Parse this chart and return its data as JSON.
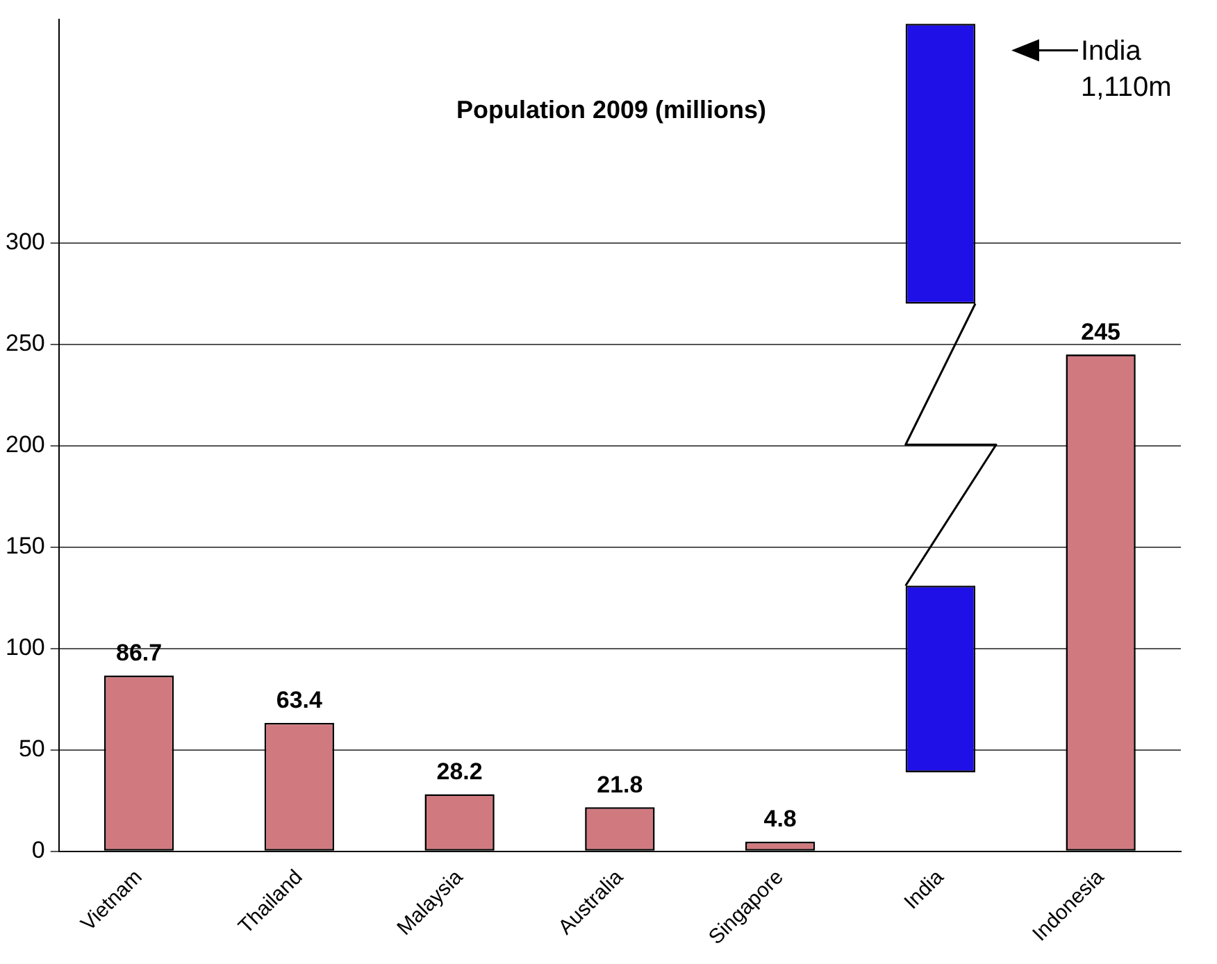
{
  "chart_data": {
    "type": "bar",
    "title": "Population 2009 (millions)",
    "categories": [
      "Vietnam",
      "Thailand",
      "Malaysia",
      "Australia",
      "Singapore",
      "India",
      "Indonesia"
    ],
    "series": [
      {
        "color": "#d07a80",
        "values": [
          86.7,
          63.4,
          28.2,
          21.8,
          4.8,
          null,
          245
        ],
        "value_labels": [
          "86.7",
          "63.4",
          "28.2",
          "21.8",
          "4.8",
          null,
          "245"
        ]
      },
      {
        "color": "#2010e8",
        "values": [
          null,
          null,
          null,
          null,
          null,
          92,
          null
        ],
        "base": [
          null,
          null,
          null,
          null,
          null,
          39,
          null
        ]
      },
      {
        "color": "#2010e8",
        "values": [
          null,
          null,
          null,
          null,
          null,
          138,
          null
        ],
        "base": [
          null,
          null,
          null,
          null,
          null,
          270,
          null
        ]
      }
    ],
    "annotations": [
      "India\n1,110m"
    ],
    "ylim": [
      0,
      410
    ],
    "yticks": [
      0,
      50,
      100,
      150,
      200,
      250,
      300
    ],
    "grid": "y",
    "legend": false
  }
}
